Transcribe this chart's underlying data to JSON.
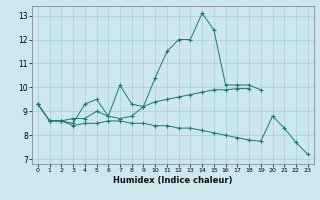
{
  "xlabel": "Humidex (Indice chaleur)",
  "bg_color": "#cce8ee",
  "grid_color": "#aaccd4",
  "line_color": "#1a7a6e",
  "xlim": [
    -0.5,
    23.5
  ],
  "ylim": [
    6.8,
    13.4
  ],
  "xticks": [
    0,
    1,
    2,
    3,
    4,
    5,
    6,
    7,
    8,
    9,
    10,
    11,
    12,
    13,
    14,
    15,
    16,
    17,
    18,
    19,
    20,
    21,
    22,
    23
  ],
  "yticks": [
    7,
    8,
    9,
    10,
    11,
    12,
    13
  ],
  "series": [
    {
      "x": [
        0,
        1,
        2,
        3,
        4,
        5,
        6,
        7,
        8,
        9,
        10,
        11,
        12,
        13,
        14,
        15,
        16,
        17,
        18,
        19,
        20,
        21,
        22,
        23
      ],
      "y": [
        9.3,
        8.6,
        8.6,
        8.5,
        9.3,
        9.5,
        8.8,
        10.1,
        9.3,
        9.2,
        10.4,
        11.5,
        12.0,
        12.0,
        13.1,
        12.4,
        10.1,
        10.1,
        10.1,
        9.9,
        null,
        null,
        null,
        null
      ]
    },
    {
      "x": [
        0,
        1,
        2,
        3,
        4,
        5,
        6,
        7,
        8,
        9,
        10,
        11,
        12,
        13,
        14,
        15,
        16,
        17,
        18,
        19,
        20,
        21,
        22,
        23
      ],
      "y": [
        9.3,
        8.6,
        8.6,
        8.7,
        8.7,
        9.0,
        8.8,
        8.7,
        8.8,
        9.2,
        9.4,
        9.5,
        9.6,
        9.7,
        9.8,
        9.9,
        9.9,
        9.95,
        9.95,
        null,
        null,
        null,
        null,
        null
      ]
    },
    {
      "x": [
        0,
        1,
        2,
        3,
        4,
        5,
        6,
        7,
        8,
        9,
        10,
        11,
        12,
        13,
        14,
        15,
        16,
        17,
        18,
        19,
        20,
        21,
        22,
        23
      ],
      "y": [
        9.3,
        8.6,
        8.6,
        8.4,
        8.5,
        8.5,
        8.6,
        8.6,
        8.5,
        8.5,
        8.4,
        8.4,
        8.3,
        8.3,
        8.2,
        8.1,
        8.0,
        7.9,
        7.8,
        7.75,
        8.8,
        8.3,
        7.7,
        7.2
      ]
    }
  ]
}
